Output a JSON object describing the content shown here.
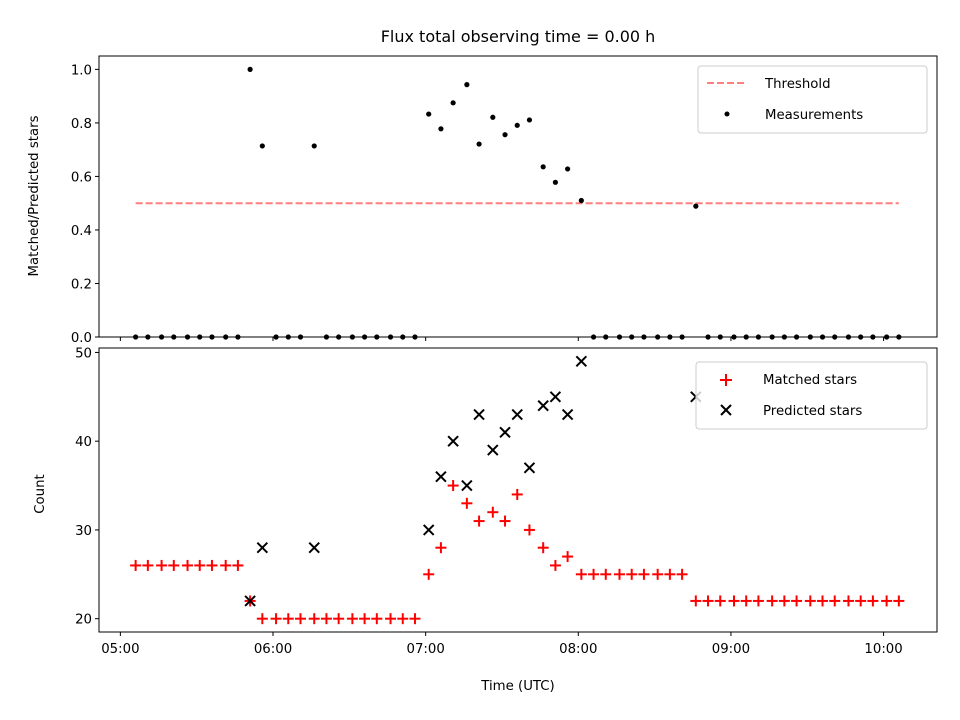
{
  "chart_data": {
    "title": "Flux total observing time = 0.00 h",
    "xlabel": "Time (UTC)",
    "x_unit": "hour-of-day",
    "xlim": [
      4.86,
      10.35
    ],
    "xtick_values": [
      5,
      6,
      7,
      8,
      9,
      10
    ],
    "xtick_labels": [
      "05:00",
      "06:00",
      "07:00",
      "08:00",
      "09:00",
      "10:00"
    ],
    "panels": [
      {
        "type": "scatter",
        "ylabel": "Matched/Predicted stars",
        "ylim": [
          0,
          1.05
        ],
        "yticks": [
          0,
          0.2,
          0.4,
          0.6,
          0.8,
          1.0
        ],
        "ytick_labels": [
          "0.0",
          "0.2",
          "0.4",
          "0.6",
          "0.8",
          "1.0"
        ],
        "legend": "top-right",
        "threshold": {
          "name": "Threshold",
          "value": 0.5,
          "x_start": 5.1,
          "x_end": 10.1,
          "color": "#ff7f7f"
        },
        "series": [
          {
            "name": "Measurements",
            "marker": "dot",
            "color": "#000000",
            "points": [
              [
                5.1,
                0
              ],
              [
                5.18,
                0
              ],
              [
                5.27,
                0
              ],
              [
                5.35,
                0
              ],
              [
                5.44,
                0
              ],
              [
                5.52,
                0
              ],
              [
                5.6,
                0
              ],
              [
                5.69,
                0
              ],
              [
                5.77,
                0
              ],
              [
                5.85,
                1.0
              ],
              [
                5.93,
                0.714
              ],
              [
                6.02,
                0
              ],
              [
                6.1,
                0
              ],
              [
                6.18,
                0
              ],
              [
                6.27,
                0.714
              ],
              [
                6.35,
                0
              ],
              [
                6.43,
                0
              ],
              [
                6.52,
                0
              ],
              [
                6.6,
                0
              ],
              [
                6.68,
                0
              ],
              [
                6.77,
                0
              ],
              [
                6.85,
                0
              ],
              [
                6.93,
                0
              ],
              [
                7.02,
                0.833
              ],
              [
                7.1,
                0.778
              ],
              [
                7.18,
                0.875
              ],
              [
                7.27,
                0.943
              ],
              [
                7.35,
                0.721
              ],
              [
                7.44,
                0.821
              ],
              [
                7.52,
                0.756
              ],
              [
                7.6,
                0.791
              ],
              [
                7.68,
                0.811
              ],
              [
                7.77,
                0.636
              ],
              [
                7.85,
                0.578
              ],
              [
                7.93,
                0.628
              ],
              [
                8.02,
                0.51
              ],
              [
                8.1,
                0
              ],
              [
                8.18,
                0
              ],
              [
                8.27,
                0
              ],
              [
                8.35,
                0
              ],
              [
                8.43,
                0
              ],
              [
                8.52,
                0
              ],
              [
                8.6,
                0
              ],
              [
                8.68,
                0
              ],
              [
                8.77,
                0.489
              ],
              [
                8.85,
                0
              ],
              [
                8.93,
                0
              ],
              [
                9.02,
                0
              ],
              [
                9.1,
                0
              ],
              [
                9.18,
                0
              ],
              [
                9.27,
                0
              ],
              [
                9.35,
                0
              ],
              [
                9.43,
                0
              ],
              [
                9.52,
                0
              ],
              [
                9.6,
                0
              ],
              [
                9.68,
                0
              ],
              [
                9.77,
                0
              ],
              [
                9.85,
                0
              ],
              [
                9.93,
                0
              ],
              [
                10.02,
                0
              ],
              [
                10.1,
                0
              ]
            ]
          }
        ]
      },
      {
        "type": "scatter",
        "ylabel": "Count",
        "ylim": [
          18.5,
          50.5
        ],
        "yticks": [
          20,
          30,
          40,
          50
        ],
        "ytick_labels": [
          "20",
          "30",
          "40",
          "50"
        ],
        "legend": "top-right",
        "series": [
          {
            "name": "Matched stars",
            "marker": "plus",
            "color": "#ff0000",
            "points": [
              [
                5.1,
                26
              ],
              [
                5.18,
                26
              ],
              [
                5.27,
                26
              ],
              [
                5.35,
                26
              ],
              [
                5.44,
                26
              ],
              [
                5.52,
                26
              ],
              [
                5.6,
                26
              ],
              [
                5.69,
                26
              ],
              [
                5.77,
                26
              ],
              [
                5.85,
                22
              ],
              [
                5.93,
                20
              ],
              [
                6.02,
                20
              ],
              [
                6.1,
                20
              ],
              [
                6.18,
                20
              ],
              [
                6.27,
                20
              ],
              [
                6.35,
                20
              ],
              [
                6.43,
                20
              ],
              [
                6.52,
                20
              ],
              [
                6.6,
                20
              ],
              [
                6.68,
                20
              ],
              [
                6.77,
                20
              ],
              [
                6.85,
                20
              ],
              [
                6.93,
                20
              ],
              [
                7.02,
                25
              ],
              [
                7.1,
                28
              ],
              [
                7.18,
                35
              ],
              [
                7.27,
                33
              ],
              [
                7.35,
                31
              ],
              [
                7.44,
                32
              ],
              [
                7.52,
                31
              ],
              [
                7.6,
                34
              ],
              [
                7.68,
                30
              ],
              [
                7.77,
                28
              ],
              [
                7.85,
                26
              ],
              [
                7.93,
                27
              ],
              [
                8.02,
                25
              ],
              [
                8.1,
                25
              ],
              [
                8.18,
                25
              ],
              [
                8.27,
                25
              ],
              [
                8.35,
                25
              ],
              [
                8.43,
                25
              ],
              [
                8.52,
                25
              ],
              [
                8.6,
                25
              ],
              [
                8.68,
                25
              ],
              [
                8.77,
                22
              ],
              [
                8.85,
                22
              ],
              [
                8.93,
                22
              ],
              [
                9.02,
                22
              ],
              [
                9.1,
                22
              ],
              [
                9.18,
                22
              ],
              [
                9.27,
                22
              ],
              [
                9.35,
                22
              ],
              [
                9.43,
                22
              ],
              [
                9.52,
                22
              ],
              [
                9.6,
                22
              ],
              [
                9.68,
                22
              ],
              [
                9.77,
                22
              ],
              [
                9.85,
                22
              ],
              [
                9.93,
                22
              ],
              [
                10.02,
                22
              ],
              [
                10.1,
                22
              ]
            ]
          },
          {
            "name": "Predicted stars",
            "marker": "x",
            "color": "#000000",
            "points": [
              [
                5.85,
                22
              ],
              [
                5.93,
                28
              ],
              [
                6.27,
                28
              ],
              [
                7.02,
                30
              ],
              [
                7.1,
                36
              ],
              [
                7.18,
                40
              ],
              [
                7.27,
                35
              ],
              [
                7.35,
                43
              ],
              [
                7.44,
                39
              ],
              [
                7.52,
                41
              ],
              [
                7.6,
                43
              ],
              [
                7.68,
                37
              ],
              [
                7.77,
                44
              ],
              [
                7.85,
                45
              ],
              [
                7.93,
                43
              ],
              [
                8.02,
                49
              ],
              [
                8.77,
                45
              ]
            ]
          }
        ]
      }
    ]
  }
}
